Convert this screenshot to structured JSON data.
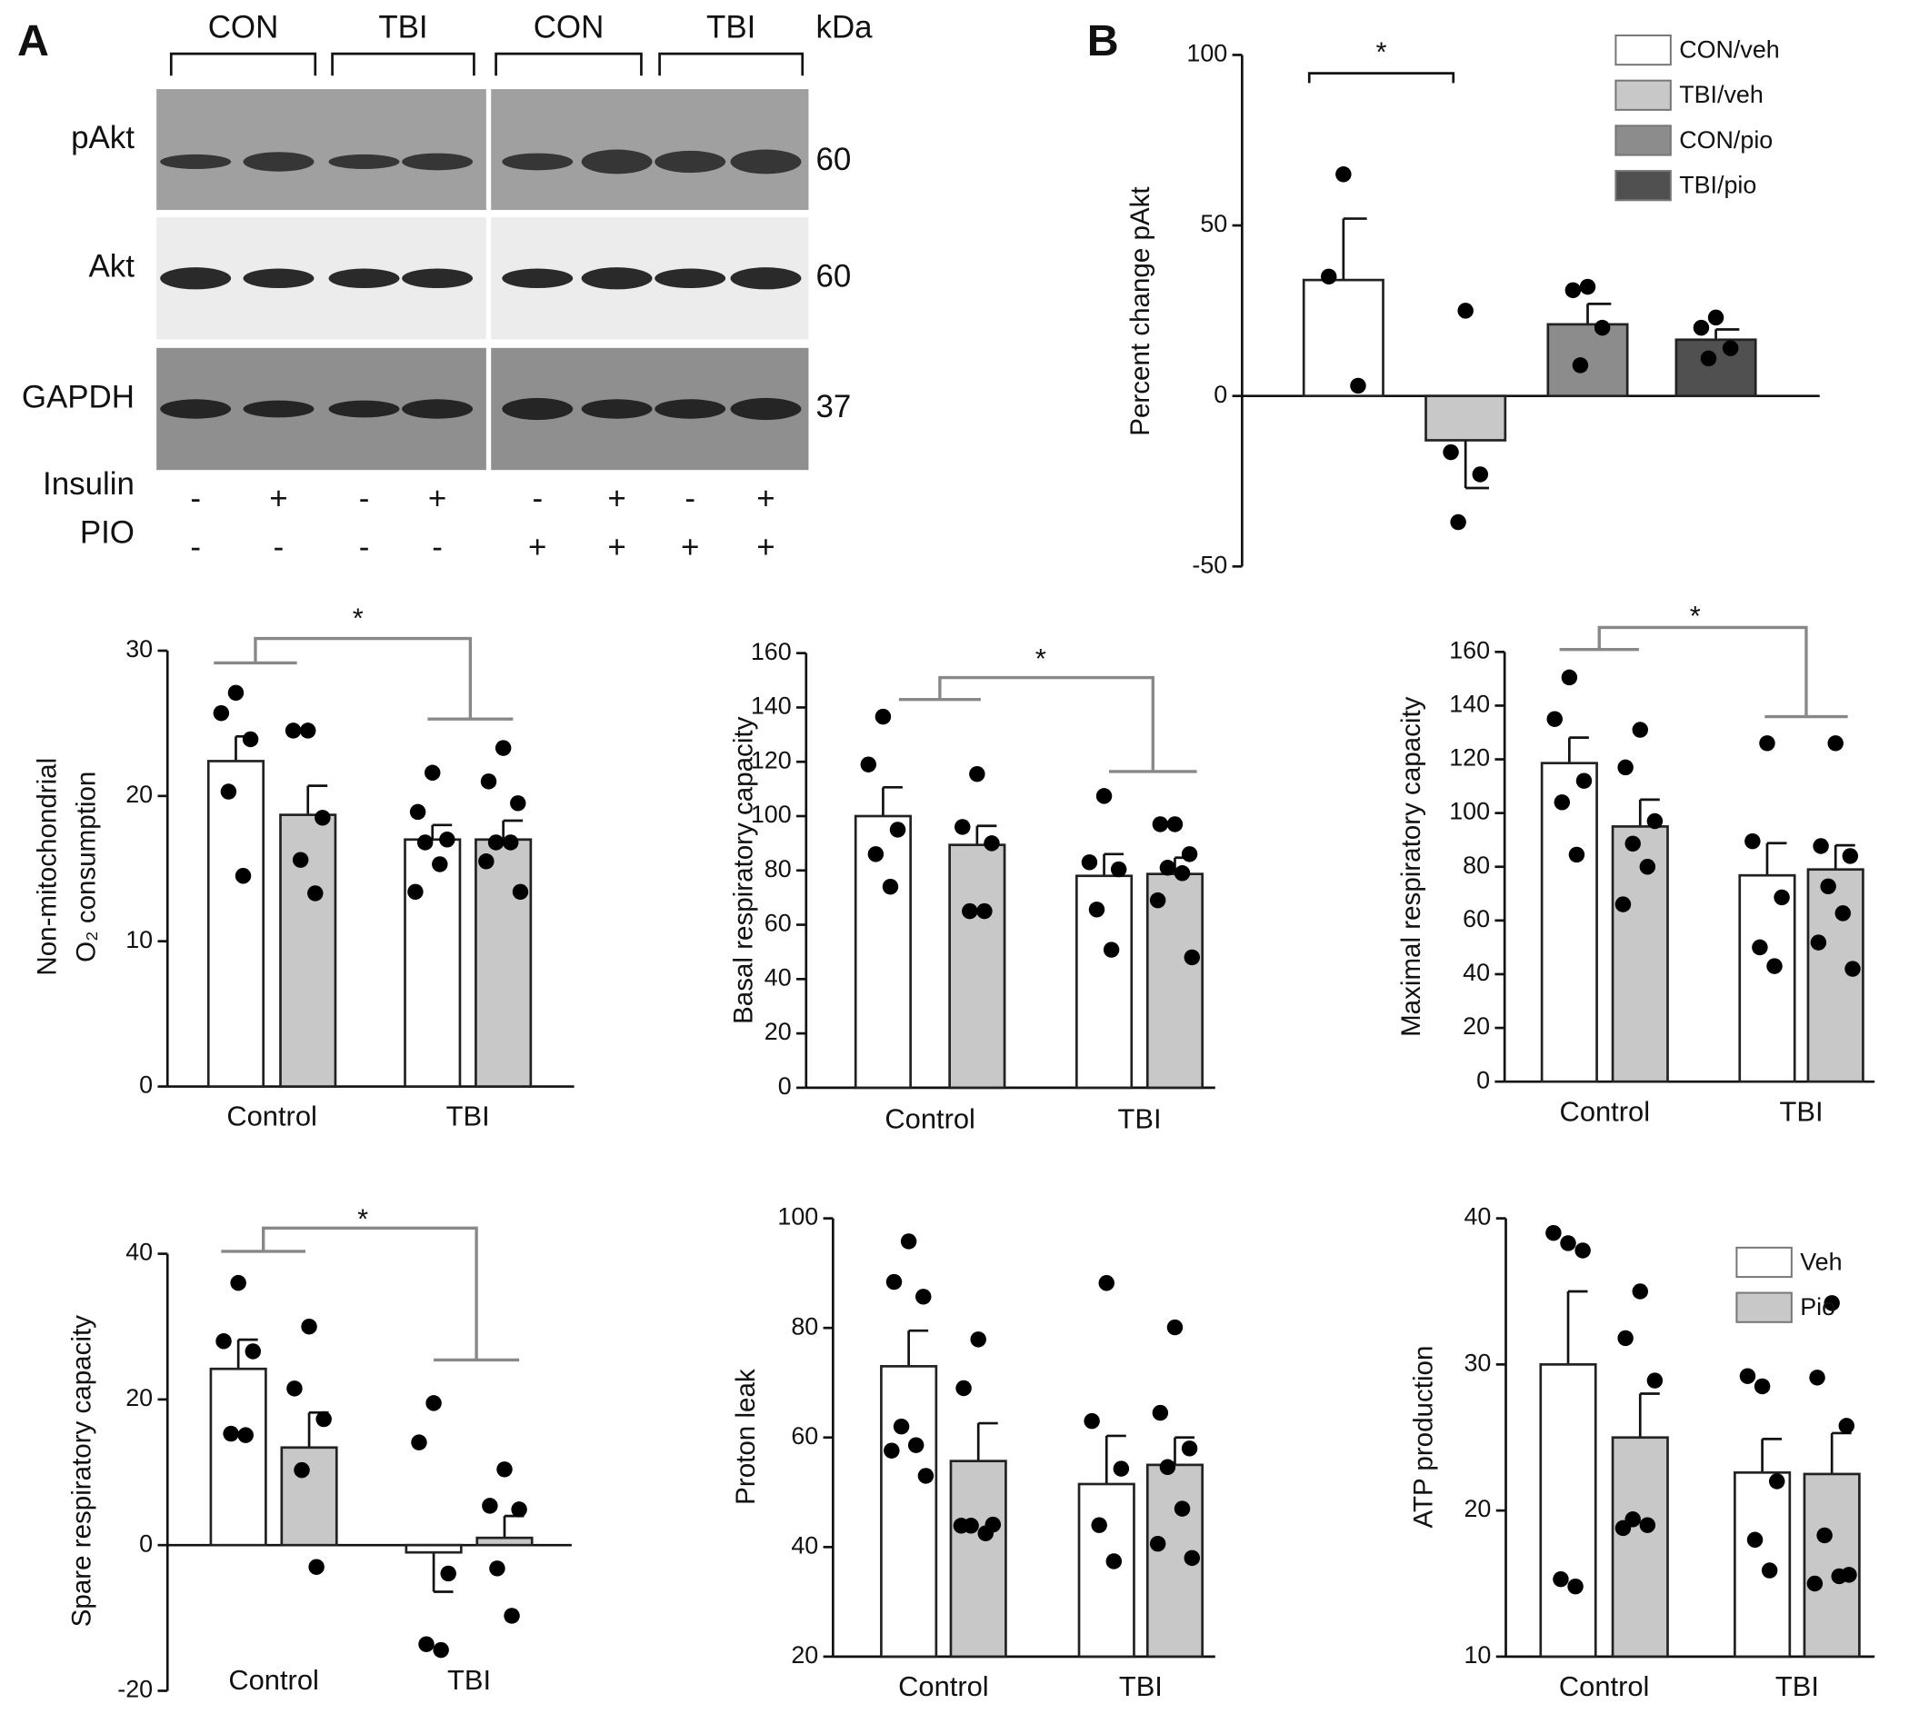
{
  "panel_a": {
    "label": "A",
    "groups": [
      "CON",
      "TBI",
      "CON",
      "TBI"
    ],
    "unit": "kDa",
    "rows": [
      {
        "name": "pAkt",
        "kda": 60
      },
      {
        "name": "Akt",
        "kda": 60
      },
      {
        "name": "GAPDH",
        "kda": 37
      }
    ],
    "treatments": [
      {
        "name": "Insulin",
        "signs": [
          "-",
          "+",
          "-",
          "+",
          "-",
          "+",
          "-",
          "+"
        ]
      },
      {
        "name": "PIO",
        "signs": [
          "-",
          "-",
          "-",
          "-",
          "+",
          "+",
          "+",
          "+"
        ]
      }
    ]
  },
  "panel_b_label": "B",
  "chart_data": [
    {
      "type": "bar",
      "ylabel": "Percent change pAkt",
      "categories": [
        null
      ],
      "ylim": [
        -50,
        100
      ],
      "yticks": [
        -50,
        0,
        50,
        100
      ],
      "annotation": "*",
      "legend": "upper right",
      "series": [
        {
          "name": "CON/veh",
          "color": "#ffffff",
          "values": [
            34
          ],
          "errors": [
            18
          ],
          "points": [
            [
              65,
              35,
              3
            ]
          ]
        },
        {
          "name": "TBI/veh",
          "color": "#c8c8c8",
          "values": [
            -13
          ],
          "errors": [
            14
          ],
          "points": [
            [
              25,
              -16.5,
              -23,
              -37
            ]
          ]
        },
        {
          "name": "CON/pio",
          "color": "#8c8c8c",
          "values": [
            21
          ],
          "errors": [
            6
          ],
          "points": [
            [
              32,
              31,
              20,
              9
            ]
          ]
        },
        {
          "name": "TBI/pio",
          "color": "#505050",
          "values": [
            16.5
          ],
          "errors": [
            3
          ],
          "points": [
            [
              23,
              20,
              14,
              11
            ]
          ]
        }
      ]
    },
    {
      "type": "bar",
      "ylabel": [
        "Non-mitochondrial",
        "O₂ consumption"
      ],
      "categories": [
        "Control",
        "TBI"
      ],
      "ylim": [
        0,
        30
      ],
      "yticks": [
        0,
        10,
        20,
        30
      ],
      "annotation": "*",
      "series": [
        {
          "color": "#ffffff",
          "values": [
            22.4,
            17
          ],
          "errors": [
            1.7,
            1
          ],
          "points": [
            [
              27.1,
              25.7,
              23.9,
              20.3,
              14.5
            ],
            [
              21.6,
              18.9,
              17,
              16.8,
              15.3,
              13.4
            ]
          ]
        },
        {
          "color": "#c8c8c8",
          "values": [
            18.7,
            17
          ],
          "errors": [
            2,
            1.3
          ],
          "points": [
            [
              24.5,
              24.5,
              18.5,
              15.6,
              13.3
            ],
            [
              23.3,
              21,
              19.5,
              16.8,
              16.8,
              15.5,
              13.4
            ]
          ]
        }
      ]
    },
    {
      "type": "bar",
      "ylabel": "Basal respiratory capacity",
      "categories": [
        "Control",
        "TBI"
      ],
      "ylim": [
        0,
        160
      ],
      "yticks": [
        0,
        20,
        40,
        60,
        80,
        100,
        120,
        140,
        160
      ],
      "annotation": "*",
      "series": [
        {
          "color": "#ffffff",
          "values": [
            100,
            78
          ],
          "errors": [
            10.6,
            8
          ],
          "points": [
            [
              136.6,
              119,
              95,
              86,
              74
            ],
            [
              107.4,
              83,
              80.4,
              65.6,
              50.8
            ]
          ]
        },
        {
          "color": "#c8c8c8",
          "values": [
            89.4,
            78.7
          ],
          "errors": [
            7,
            6
          ],
          "points": [
            [
              115.5,
              96,
              90,
              65,
              65
            ],
            [
              97,
              97,
              86,
              81,
              79,
              69,
              48
            ]
          ]
        }
      ]
    },
    {
      "type": "bar",
      "ylabel": "Maximal respiratory capacity",
      "categories": [
        "Control",
        "TBI"
      ],
      "ylim": [
        0,
        160
      ],
      "yticks": [
        0,
        20,
        40,
        60,
        80,
        100,
        120,
        140,
        160
      ],
      "annotation": "*",
      "series": [
        {
          "color": "#ffffff",
          "values": [
            118.6,
            76.8
          ],
          "errors": [
            9.5,
            12
          ],
          "points": [
            [
              150.5,
              135,
              112,
              104,
              84.5
            ],
            [
              126,
              89.5,
              68.6,
              50,
              43
            ]
          ]
        },
        {
          "color": "#c8c8c8",
          "values": [
            95,
            79
          ],
          "errors": [
            10,
            9
          ],
          "points": [
            [
              131,
              117,
              97,
              88.6,
              80,
              66
            ],
            [
              126,
              87.7,
              84,
              72.7,
              62.7,
              51.8,
              42
            ]
          ]
        }
      ]
    },
    {
      "type": "bar",
      "ylabel": "Spare respiratory capacity",
      "categories": [
        "Control",
        "TBI"
      ],
      "ylim": [
        -20,
        40
      ],
      "yticks": [
        -20,
        0,
        20,
        40
      ],
      "annotation": "*",
      "series": [
        {
          "color": "#ffffff",
          "values": [
            24.2,
            -1
          ],
          "errors": [
            4,
            5.4
          ],
          "points": [
            [
              36,
              28,
              26.6,
              15.3,
              15.1
            ],
            [
              19.5,
              14.1,
              -3.9,
              -13.6,
              -14.4
            ]
          ]
        },
        {
          "color": "#c8c8c8",
          "values": [
            13.4,
            1
          ],
          "errors": [
            4.8,
            3
          ],
          "points": [
            [
              30,
              21.5,
              17.3,
              10.3,
              -3
            ],
            [
              10.4,
              5.4,
              4.9,
              -3.2,
              -9.7
            ]
          ]
        }
      ]
    },
    {
      "type": "bar",
      "ylabel": "Proton leak",
      "categories": [
        "Control",
        "TBI"
      ],
      "ylim": [
        20,
        100
      ],
      "yticks": [
        20,
        40,
        60,
        80,
        100
      ],
      "series": [
        {
          "color": "#ffffff",
          "values": [
            73,
            51.5
          ],
          "errors": [
            6.5,
            8.8
          ],
          "points": [
            [
              95.8,
              88.4,
              85.7,
              62,
              58.6,
              57.6,
              53
            ],
            [
              88.2,
              63,
              54.3,
              44,
              37.4
            ]
          ]
        },
        {
          "color": "#c8c8c8",
          "values": [
            55.7,
            55
          ],
          "errors": [
            6.9,
            5
          ],
          "points": [
            [
              77.9,
              69,
              44.1,
              43.9,
              42.5,
              43.9
            ],
            [
              80.1,
              64.5,
              58,
              54.6,
              47,
              40.6,
              38
            ]
          ]
        }
      ]
    },
    {
      "type": "bar",
      "ylabel": "ATP production",
      "categories": [
        "Control",
        "TBI"
      ],
      "ylim": [
        10,
        40
      ],
      "yticks": [
        10,
        20,
        30,
        40
      ],
      "legend": "upper right",
      "series": [
        {
          "name": "Veh",
          "color": "#ffffff",
          "values": [
            30,
            22.6
          ],
          "errors": [
            5,
            2.3
          ],
          "points": [
            [
              38.3,
              39,
              37.8,
              15.3,
              14.8
            ],
            [
              28.5,
              29.2,
              22,
              18,
              15.9
            ]
          ]
        },
        {
          "name": "Pio",
          "color": "#c8c8c8",
          "values": [
            25,
            22.5
          ],
          "errors": [
            3,
            2.8
          ],
          "points": [
            [
              35,
              31.8,
              28.9,
              19.4,
              19,
              18.8
            ],
            [
              34.2,
              29.1,
              25.8,
              18.3,
              15.5,
              15,
              15.6
            ]
          ]
        }
      ]
    }
  ]
}
